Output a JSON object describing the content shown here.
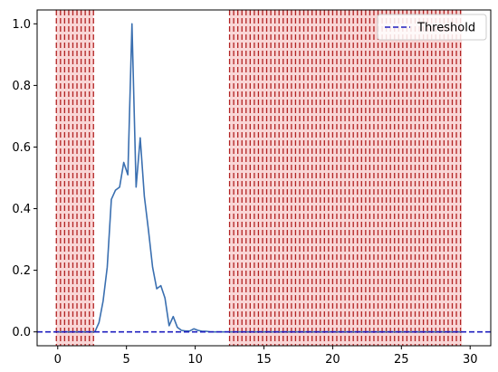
{
  "chart_data": {
    "type": "line",
    "xlim": [
      -1.5,
      31.5
    ],
    "ylim": [
      -0.045,
      1.045
    ],
    "x_ticks": [
      0,
      5,
      10,
      15,
      20,
      25,
      30
    ],
    "y_ticks": [
      0.0,
      0.2,
      0.4,
      0.6,
      0.8,
      1.0
    ],
    "x_tick_labels": [
      "0",
      "5",
      "10",
      "15",
      "20",
      "25",
      "30"
    ],
    "y_tick_labels": [
      "0.0",
      "0.2",
      "0.4",
      "0.6",
      "0.8",
      "1.0"
    ],
    "grid": false,
    "legend_position": "top-right",
    "series": [
      {
        "name": "",
        "color": "#3a6fb0",
        "x": [
          0,
          0.3,
          0.6,
          0.9,
          1.2,
          1.5,
          1.8,
          2.1,
          2.4,
          2.7,
          3.0,
          3.3,
          3.6,
          3.9,
          4.2,
          4.5,
          4.8,
          5.1,
          5.4,
          5.7,
          6.0,
          6.3,
          6.6,
          6.9,
          7.2,
          7.5,
          7.8,
          8.1,
          8.4,
          8.7,
          9.0,
          9.3,
          9.6,
          9.9,
          10.2,
          10.5,
          10.8,
          11.1,
          11.4,
          11.7,
          12.0,
          12.3,
          12.6,
          13.0,
          14.0,
          16.0,
          18.0,
          20.0,
          22.0,
          24.0,
          26.0,
          28.0,
          29.4
        ],
        "y": [
          0,
          0,
          0,
          0,
          0,
          0,
          0,
          0,
          0,
          0,
          0.03,
          0.1,
          0.21,
          0.43,
          0.46,
          0.47,
          0.55,
          0.51,
          1.0,
          0.47,
          0.63,
          0.44,
          0.33,
          0.21,
          0.14,
          0.15,
          0.11,
          0.02,
          0.05,
          0.015,
          0.005,
          0.003,
          0.003,
          0.01,
          0.005,
          0.002,
          0.002,
          0,
          0,
          0,
          0,
          0,
          0,
          0,
          0,
          0,
          0,
          0,
          0,
          0,
          0,
          0,
          0
        ]
      },
      {
        "name": "Threshold",
        "color": "#1f1fbf",
        "style": "dashed",
        "x": [
          -1.5,
          31.5
        ],
        "y": [
          0,
          0
        ]
      }
    ],
    "highlight_regions": [
      {
        "x_start": -0.1,
        "x_end": 2.6,
        "color": "#f9d6d6",
        "line_color": "#b22222"
      },
      {
        "x_start": 12.5,
        "x_end": 29.4,
        "color": "#f9d6d6",
        "line_color": "#b22222"
      }
    ],
    "highlight_line_step": 0.3
  }
}
